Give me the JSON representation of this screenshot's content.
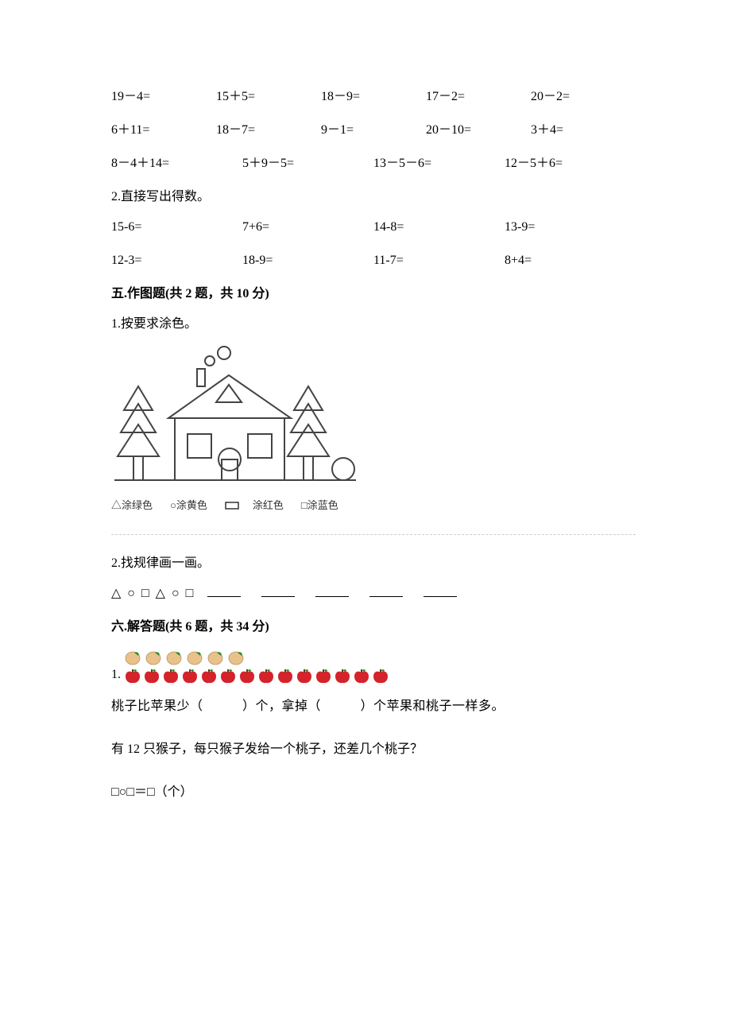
{
  "arithmetic": {
    "row1": [
      "19－4=",
      "15＋5=",
      "18－9=",
      "17－2=",
      "20－2="
    ],
    "row2": [
      "6＋11=",
      "18－7=",
      "9－1=",
      "20－10=",
      "3＋4="
    ],
    "row3": [
      "8－4＋14=",
      "5＋9－5=",
      "13－5－6=",
      "12－5＋6="
    ]
  },
  "section4": {
    "q2_label": "2.直接写出得数。",
    "row1": [
      "15-6=",
      "7+6=",
      "14-8=",
      "13-9="
    ],
    "row2": [
      "12-3=",
      "18-9=",
      "11-7=",
      "8+4="
    ]
  },
  "section5": {
    "heading": "五.作图题(共 2 题，共 10 分)",
    "q1_label": "1.按要求涂色。",
    "legend": {
      "tri": "△涂绿色",
      "circle": "○涂黄色",
      "rect": "　涂红色",
      "square": "□涂蓝色"
    },
    "q2_label": "2.找规律画一画。",
    "pattern_prefix": "△ ○ □ △ ○ □"
  },
  "section6": {
    "heading": "六.解答题(共 6 题，共 34 分)",
    "q1_num": "1.",
    "q1_line": "桃子比苹果少（　　　）个，拿掉（　　　）个苹果和桃子一样多。",
    "q1_part2": "有 12 只猴子，每只猴子发给一个桃子，还差几个桃子？",
    "q1_expr": "□○□＝□（个）",
    "peaches_count": 6,
    "apples_count": 14,
    "peach_color": "#e8c28a",
    "peach_leaf": "#2c8a2c",
    "apple_color": "#d4232a",
    "apple_leaf": "#2c8a2c"
  },
  "colors": {
    "text": "#000000",
    "divider": "#cccccc",
    "legend_text": "#333333",
    "house_stroke": "#444444"
  }
}
